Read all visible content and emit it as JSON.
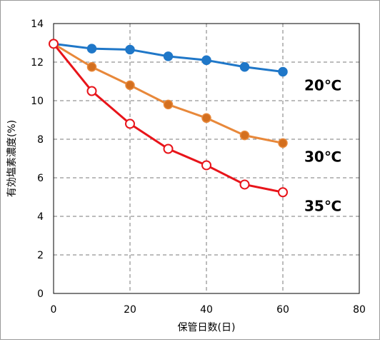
{
  "chart_data": {
    "type": "line",
    "title": "",
    "xlabel": "保管日数(日)",
    "ylabel": "有効塩素濃度(%)",
    "xlim": [
      0,
      80
    ],
    "ylim": [
      0,
      14
    ],
    "x_ticks": [
      "0",
      "20",
      "40",
      "60",
      "80"
    ],
    "y_ticks": [
      "0",
      "2",
      "4",
      "6",
      "8",
      "10",
      "12",
      "14"
    ],
    "grid": true,
    "legend": "inline labels at right end of each series",
    "series": [
      {
        "name": "20℃",
        "color": "#1f77c8",
        "marker": "filled-circle",
        "x": [
          0,
          10,
          20,
          30,
          40,
          50,
          60
        ],
        "y": [
          12.95,
          12.7,
          12.65,
          12.3,
          12.1,
          11.75,
          11.5
        ]
      },
      {
        "name": "30℃",
        "color": "#e8883a",
        "marker_fill": "#d36f1f",
        "marker": "filled-circle",
        "x": [
          0,
          10,
          20,
          30,
          40,
          50,
          60
        ],
        "y": [
          12.95,
          11.75,
          10.8,
          9.8,
          9.1,
          8.2,
          7.8
        ]
      },
      {
        "name": "35℃",
        "color": "#e8141a",
        "marker": "open-circle",
        "x": [
          0,
          10,
          20,
          30,
          40,
          50,
          60
        ],
        "y": [
          12.95,
          10.5,
          8.8,
          7.5,
          6.65,
          5.65,
          5.25
        ]
      }
    ]
  }
}
